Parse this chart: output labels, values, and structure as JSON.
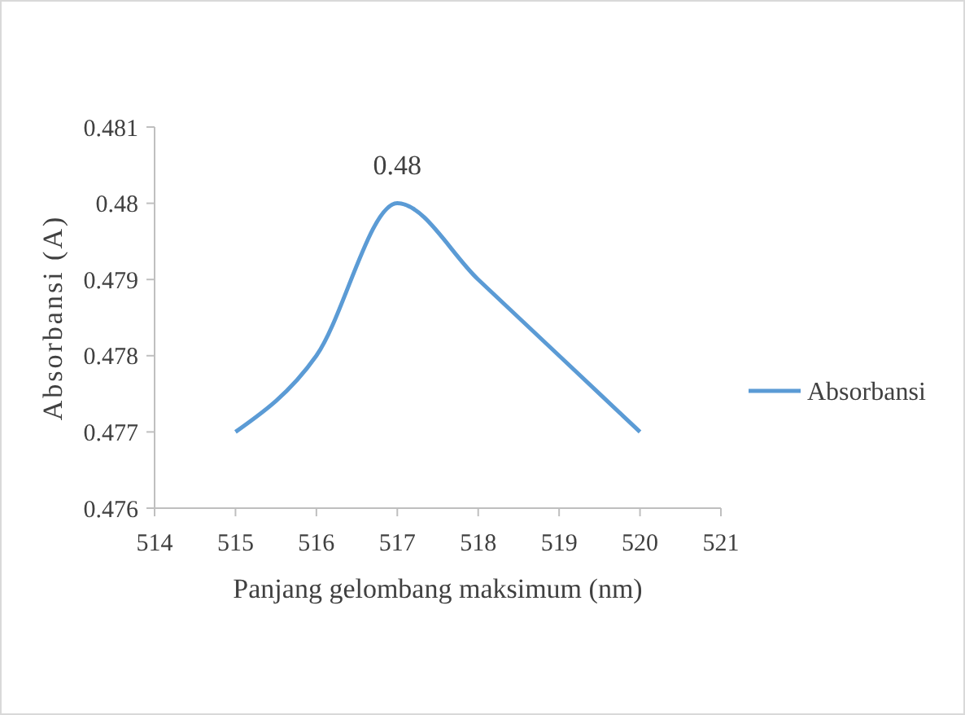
{
  "chart_data": {
    "type": "line",
    "xlabel": "Panjang gelombang maksimum (nm)",
    "ylabel": "Absorbansi (A)",
    "x": [
      515,
      516,
      517,
      518,
      519,
      520
    ],
    "series": [
      {
        "name": "Absorbansi",
        "color": "#5b9bd5",
        "values": [
          0.477,
          0.478,
          0.48,
          0.479,
          0.478,
          0.477
        ],
        "value_labels": [
          null,
          null,
          "0.48",
          null,
          null,
          null
        ]
      }
    ],
    "xlim": [
      514,
      521
    ],
    "xticks": [
      514,
      515,
      516,
      517,
      518,
      519,
      520,
      521
    ],
    "ylim": [
      0.476,
      0.481
    ],
    "yticks": [
      0.476,
      0.477,
      0.478,
      0.479,
      0.48,
      0.481
    ],
    "grid": false,
    "legend": "right",
    "marker": "none",
    "line_style": "solid"
  }
}
